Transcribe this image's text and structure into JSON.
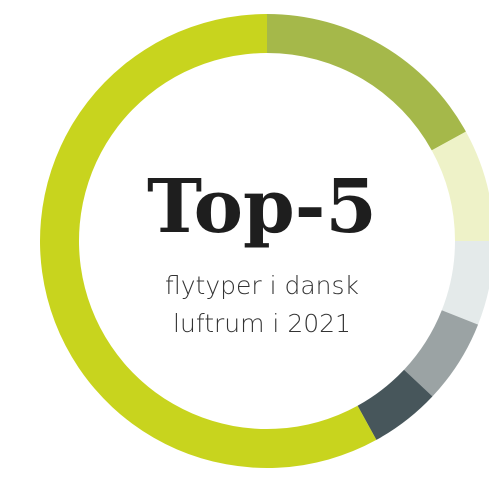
{
  "chart_data": {
    "type": "donut",
    "title": "Top-5",
    "subtitle": [
      "flytyper i dansk",
      "luftrum i 2021"
    ],
    "values": [
      17,
      8,
      6,
      6,
      5,
      58
    ],
    "colors": [
      "#a5b84a",
      "#eef2c8",
      "#e4eaea",
      "#9ba3a4",
      "#47565b",
      "#c8d41e"
    ]
  }
}
